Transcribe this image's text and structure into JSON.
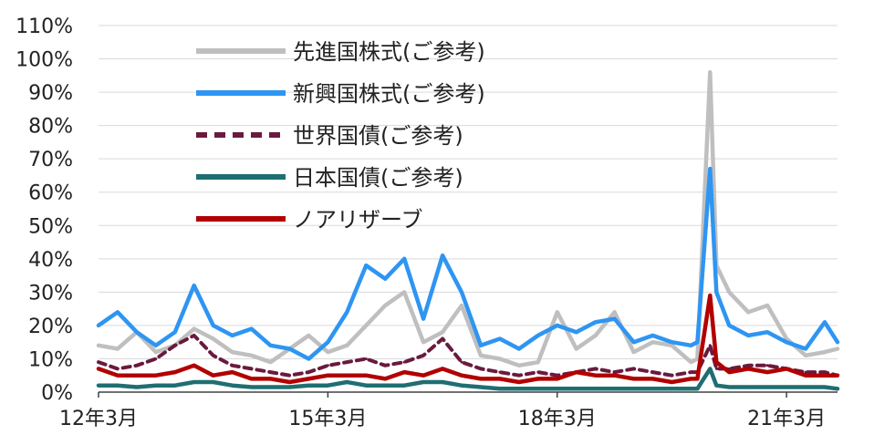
{
  "chart_data": {
    "type": "line",
    "ylim": [
      0,
      110
    ],
    "ytick_labels": [
      "0%",
      "10%",
      "20%",
      "30%",
      "40%",
      "50%",
      "60%",
      "70%",
      "80%",
      "90%",
      "100%",
      "110%"
    ],
    "xlim": [
      "2012-03",
      "2021-11"
    ],
    "xtick_labels": [
      {
        "x": "2012-03",
        "label": "12年3月"
      },
      {
        "x": "2015-03",
        "label": "15年3月"
      },
      {
        "x": "2018-03",
        "label": "18年3月"
      },
      {
        "x": "2021-03",
        "label": "21年3月"
      }
    ],
    "grid": true,
    "legend_position": "top-left",
    "series": [
      {
        "name": "先進国株式(ご参考)",
        "color": "#bfbfbf",
        "dash": "solid",
        "x": [
          "2012-03",
          "2012-06",
          "2012-09",
          "2012-12",
          "2013-03",
          "2013-06",
          "2013-09",
          "2013-12",
          "2014-03",
          "2014-06",
          "2014-09",
          "2014-12",
          "2015-03",
          "2015-06",
          "2015-09",
          "2015-12",
          "2016-03",
          "2016-06",
          "2016-09",
          "2016-12",
          "2017-03",
          "2017-06",
          "2017-09",
          "2017-12",
          "2018-03",
          "2018-06",
          "2018-09",
          "2018-12",
          "2019-03",
          "2019-06",
          "2019-09",
          "2019-12",
          "2020-01",
          "2020-03",
          "2020-04",
          "2020-06",
          "2020-09",
          "2020-12",
          "2021-03",
          "2021-06",
          "2021-09",
          "2021-11"
        ],
        "values": [
          14,
          13,
          18,
          12,
          14,
          19,
          16,
          12,
          11,
          9,
          13,
          17,
          12,
          14,
          20,
          26,
          30,
          15,
          18,
          26,
          11,
          10,
          8,
          9,
          24,
          13,
          17,
          24,
          12,
          15,
          14,
          9,
          10,
          96,
          38,
          30,
          24,
          26,
          16,
          11,
          12,
          13
        ]
      },
      {
        "name": "新興国株式(ご参考)",
        "color": "#2e95f2",
        "dash": "solid",
        "x": [
          "2012-03",
          "2012-06",
          "2012-09",
          "2012-12",
          "2013-03",
          "2013-06",
          "2013-09",
          "2013-12",
          "2014-03",
          "2014-06",
          "2014-09",
          "2014-12",
          "2015-03",
          "2015-06",
          "2015-09",
          "2015-12",
          "2016-03",
          "2016-06",
          "2016-09",
          "2016-12",
          "2017-03",
          "2017-06",
          "2017-09",
          "2017-12",
          "2018-03",
          "2018-06",
          "2018-09",
          "2018-12",
          "2019-03",
          "2019-06",
          "2019-09",
          "2019-12",
          "2020-01",
          "2020-03",
          "2020-04",
          "2020-06",
          "2020-09",
          "2020-12",
          "2021-03",
          "2021-06",
          "2021-09",
          "2021-11"
        ],
        "values": [
          20,
          24,
          18,
          14,
          18,
          32,
          20,
          17,
          19,
          14,
          13,
          10,
          15,
          24,
          38,
          34,
          40,
          22,
          41,
          30,
          14,
          16,
          13,
          17,
          20,
          18,
          21,
          22,
          15,
          17,
          15,
          14,
          15,
          67,
          30,
          20,
          17,
          18,
          15,
          13,
          21,
          15
        ]
      },
      {
        "name": "世界国債(ご参考)",
        "color": "#6a1a3e",
        "dash": "dashed",
        "x": [
          "2012-03",
          "2012-06",
          "2012-09",
          "2012-12",
          "2013-03",
          "2013-06",
          "2013-09",
          "2013-12",
          "2014-03",
          "2014-06",
          "2014-09",
          "2014-12",
          "2015-03",
          "2015-06",
          "2015-09",
          "2015-12",
          "2016-03",
          "2016-06",
          "2016-09",
          "2016-12",
          "2017-03",
          "2017-06",
          "2017-09",
          "2017-12",
          "2018-03",
          "2018-06",
          "2018-09",
          "2018-12",
          "2019-03",
          "2019-06",
          "2019-09",
          "2019-12",
          "2020-01",
          "2020-03",
          "2020-04",
          "2020-06",
          "2020-09",
          "2020-12",
          "2021-03",
          "2021-06",
          "2021-09",
          "2021-11"
        ],
        "values": [
          9,
          7,
          8,
          10,
          14,
          17,
          11,
          8,
          7,
          6,
          5,
          6,
          8,
          9,
          10,
          8,
          9,
          11,
          16,
          9,
          7,
          6,
          5,
          6,
          5,
          6,
          7,
          6,
          7,
          6,
          5,
          6,
          6,
          14,
          7,
          7,
          8,
          8,
          7,
          6,
          6,
          5
        ]
      },
      {
        "name": "日本国債(ご参考)",
        "color": "#1f6e72",
        "dash": "solid",
        "x": [
          "2012-03",
          "2012-06",
          "2012-09",
          "2012-12",
          "2013-03",
          "2013-06",
          "2013-09",
          "2013-12",
          "2014-03",
          "2014-06",
          "2014-09",
          "2014-12",
          "2015-03",
          "2015-06",
          "2015-09",
          "2015-12",
          "2016-03",
          "2016-06",
          "2016-09",
          "2016-12",
          "2017-03",
          "2017-06",
          "2017-09",
          "2017-12",
          "2018-03",
          "2018-06",
          "2018-09",
          "2018-12",
          "2019-03",
          "2019-06",
          "2019-09",
          "2019-12",
          "2020-01",
          "2020-03",
          "2020-04",
          "2020-06",
          "2020-09",
          "2020-12",
          "2021-03",
          "2021-06",
          "2021-09",
          "2021-11"
        ],
        "values": [
          2,
          2,
          1.5,
          2,
          2,
          3,
          3,
          2,
          1.5,
          1.5,
          1.5,
          2,
          2,
          3,
          2,
          2,
          2,
          3,
          3,
          2,
          1.5,
          1,
          1,
          1,
          1,
          1,
          1,
          1,
          1,
          1,
          1,
          1,
          1,
          7,
          2,
          1.5,
          1.5,
          1.5,
          1.5,
          1.5,
          1.5,
          1
        ]
      },
      {
        "name": "ノアリザーブ",
        "color": "#b20000",
        "dash": "solid",
        "x": [
          "2012-03",
          "2012-06",
          "2012-09",
          "2012-12",
          "2013-03",
          "2013-06",
          "2013-09",
          "2013-12",
          "2014-03",
          "2014-06",
          "2014-09",
          "2014-12",
          "2015-03",
          "2015-06",
          "2015-09",
          "2015-12",
          "2016-03",
          "2016-06",
          "2016-09",
          "2016-12",
          "2017-03",
          "2017-06",
          "2017-09",
          "2017-12",
          "2018-03",
          "2018-06",
          "2018-09",
          "2018-12",
          "2019-03",
          "2019-06",
          "2019-09",
          "2019-12",
          "2020-01",
          "2020-03",
          "2020-04",
          "2020-06",
          "2020-09",
          "2020-12",
          "2021-03",
          "2021-06",
          "2021-09",
          "2021-11"
        ],
        "values": [
          7,
          5,
          5,
          5,
          6,
          8,
          5,
          6,
          4,
          4,
          3,
          4,
          5,
          5,
          5,
          4,
          6,
          5,
          7,
          5,
          4,
          4,
          3,
          4,
          4,
          6,
          5,
          5,
          4,
          4,
          3,
          4,
          4,
          29,
          9,
          6,
          7,
          6,
          7,
          5,
          5,
          5
        ]
      }
    ]
  }
}
